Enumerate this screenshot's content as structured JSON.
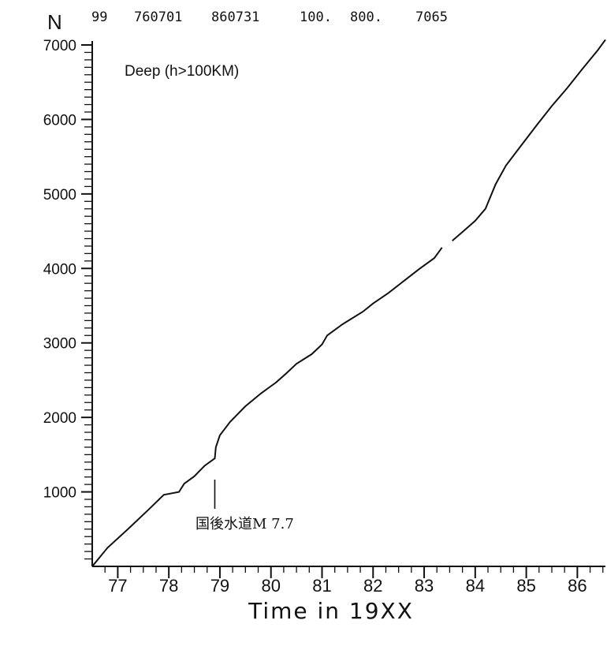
{
  "header": {
    "n": "99",
    "start": "760701",
    "end": "860731",
    "v1": "100.",
    "v2": "800.",
    "count": "7065"
  },
  "chart_data": {
    "type": "line",
    "title": "",
    "subtitle": "Deep  (h>100KM)",
    "ylabel": "N",
    "xlabel": "Time in 19XX",
    "xlim": [
      76.5,
      86.55
    ],
    "ylim": [
      0,
      7000
    ],
    "x_ticks": [
      "77",
      "78",
      "79",
      "80",
      "81",
      "82",
      "83",
      "84",
      "85",
      "86"
    ],
    "y_ticks": [
      "1000",
      "2000",
      "3000",
      "4000",
      "5000",
      "6000",
      "7000"
    ],
    "annotation": {
      "text": "国後水道M 7.7",
      "x": 78.9
    },
    "series": [
      {
        "x": [
          76.5,
          76.8,
          77.2,
          77.6,
          77.9,
          78.2,
          78.3,
          78.5,
          78.7,
          78.9,
          78.92,
          79.0,
          79.2,
          79.5,
          79.8,
          80.0,
          80.1,
          80.3,
          80.5,
          80.8,
          81.0,
          81.1,
          81.4,
          81.8,
          82.0,
          82.3,
          82.6,
          82.9,
          83.2,
          83.35,
          83.55,
          83.8,
          84.0,
          84.2,
          84.4,
          84.6,
          84.8,
          85.0,
          85.2,
          85.5,
          85.8,
          86.1,
          86.4,
          86.55
        ],
        "y": [
          0,
          250,
          500,
          760,
          960,
          1000,
          1110,
          1210,
          1350,
          1450,
          1600,
          1760,
          1940,
          2150,
          2320,
          2420,
          2470,
          2590,
          2720,
          2850,
          2980,
          3100,
          3250,
          3420,
          3530,
          3670,
          3830,
          3990,
          4140,
          4280,
          4370,
          4520,
          4640,
          4800,
          5130,
          5380,
          5560,
          5740,
          5920,
          6180,
          6420,
          6680,
          6930,
          7070
        ]
      }
    ]
  }
}
